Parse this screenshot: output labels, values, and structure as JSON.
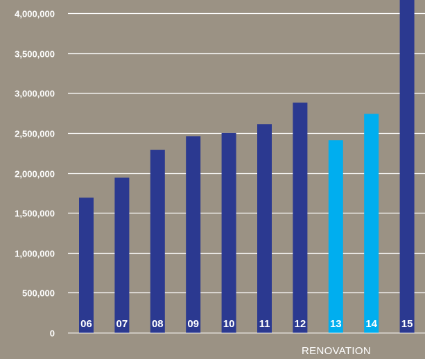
{
  "chart_data": {
    "type": "bar",
    "categories": [
      "06",
      "07",
      "08",
      "09",
      "10",
      "11",
      "12",
      "13",
      "14",
      "15"
    ],
    "values": [
      1690000,
      1940000,
      2290000,
      2460000,
      2500000,
      2610000,
      2880000,
      2410000,
      2740000,
      4200000
    ],
    "ylim": [
      0,
      4000000
    ],
    "yticks": [
      0,
      500000,
      1000000,
      1500000,
      2000000,
      2500000,
      3000000,
      3500000,
      4000000
    ],
    "ytick_labels": [
      "0",
      "500,000",
      "1,000,000",
      "1,500,000",
      "2,000,000",
      "2,500,000",
      "3,000,000",
      "3,500,000",
      "4,000,000"
    ],
    "grid": true,
    "highlighted_categories": [
      "13",
      "14"
    ],
    "annotation": "RENOVATION",
    "colors": {
      "background": "#9b9284",
      "bar": "#2b3990",
      "bar_highlight": "#00aeef",
      "grid": "#ffffff",
      "text": "#ffffff"
    }
  }
}
